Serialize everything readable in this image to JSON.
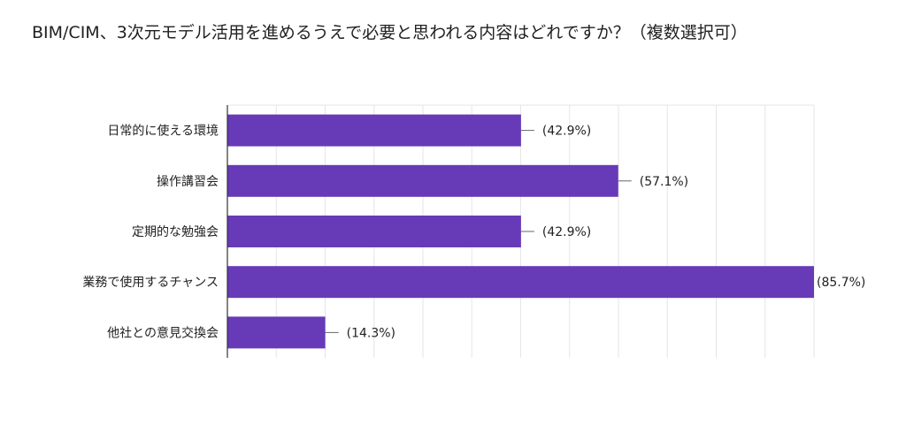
{
  "chart_data": {
    "type": "bar",
    "orientation": "horizontal",
    "title": "BIM/CIM、3次元モデル活用を進めるうえで必要と思われる内容はどれですか？（複数選択可）",
    "categories": [
      "日常的に使える環境",
      "操作講習会",
      "定期的な勉強会",
      "業務で使用するチャンス",
      "他社との意見交換会"
    ],
    "values": [
      42.9,
      57.1,
      42.9,
      85.7,
      14.3
    ],
    "value_labels": [
      "(42.9%)",
      "(57.1%)",
      "(42.9%)",
      "(85.7%)",
      "(14.3%)"
    ],
    "xlim": [
      0,
      85.7
    ],
    "grid": true,
    "bar_color": "#673ab7"
  }
}
